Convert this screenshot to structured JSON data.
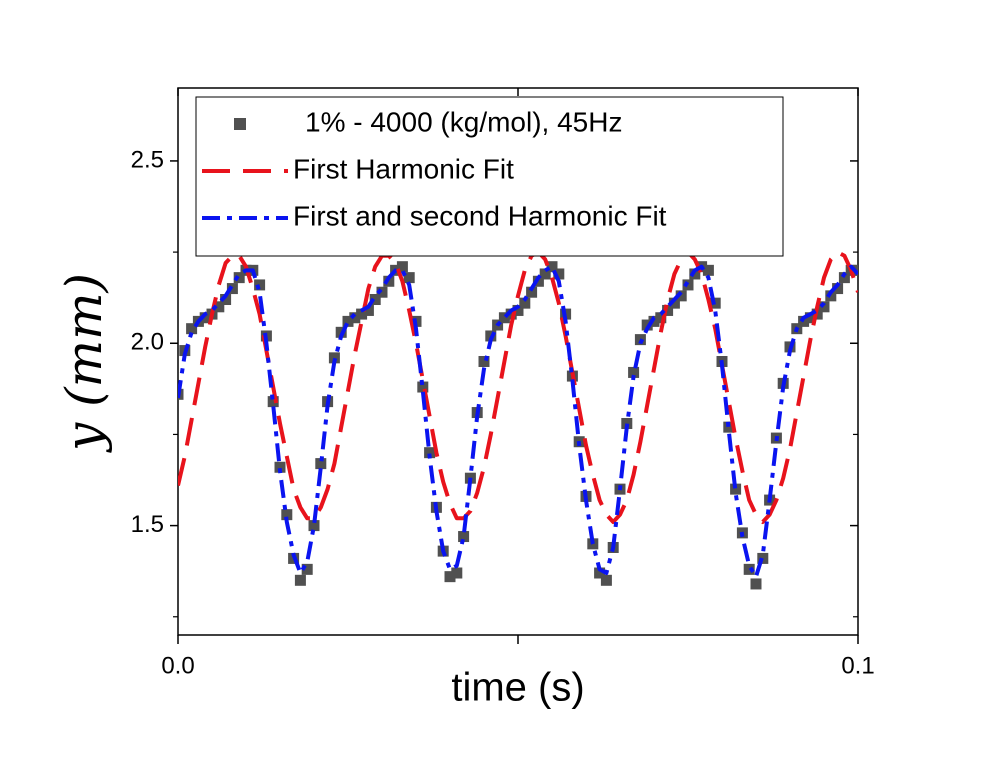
{
  "chart_data": {
    "type": "line",
    "x_label": "time (s)",
    "y_label": "y (mm)",
    "xlim": [
      0,
      0.1
    ],
    "ylim": [
      1.2,
      2.7
    ],
    "xticks": [
      {
        "value": 0,
        "label": "0.0"
      },
      {
        "value": 0.05,
        "label": null
      },
      {
        "value": 0.1,
        "label": "0.1"
      }
    ],
    "yticks": [
      1.5,
      {
        "value": 2,
        "label": "2.0"
      },
      2.5
    ],
    "yminorticks": [
      1.25,
      1.75,
      2.25
    ],
    "grid": false,
    "legend": "upper left",
    "x": [
      0,
      0.001,
      0.002,
      0.003,
      0.004,
      0.005,
      0.006,
      0.007,
      0.008,
      0.009,
      0.01,
      0.011,
      0.012,
      0.013,
      0.014,
      0.015,
      0.016,
      0.017,
      0.018,
      0.019,
      0.02,
      0.021,
      0.022,
      0.023,
      0.024,
      0.025,
      0.026,
      0.027,
      0.028,
      0.029,
      0.03,
      0.031,
      0.032,
      0.033,
      0.034,
      0.035,
      0.036,
      0.037,
      0.038,
      0.039,
      0.04,
      0.041,
      0.042,
      0.043,
      0.044,
      0.045,
      0.046,
      0.047,
      0.048,
      0.049,
      0.05,
      0.051,
      0.052,
      0.053,
      0.054,
      0.055,
      0.056,
      0.057,
      0.058,
      0.059,
      0.06,
      0.061,
      0.062,
      0.063,
      0.064,
      0.065,
      0.066,
      0.067,
      0.068,
      0.069,
      0.07,
      0.071,
      0.072,
      0.073,
      0.074,
      0.075,
      0.076,
      0.077,
      0.078,
      0.079,
      0.08,
      0.081,
      0.082,
      0.083,
      0.084,
      0.085,
      0.086,
      0.087,
      0.088,
      0.089,
      0.09,
      0.091,
      0.092,
      0.093,
      0.094,
      0.095,
      0.096,
      0.097,
      0.098,
      0.099,
      0.1
    ],
    "series": [
      {
        "name": "1% - 4000 (kg/mol), 45Hz",
        "color": "#505050",
        "style": "markers",
        "values": [
          1.86,
          1.98,
          2.04,
          2.06,
          2.07,
          2.08,
          2.1,
          2.12,
          2.15,
          2.18,
          2.2,
          2.2,
          2.16,
          2.02,
          1.84,
          1.66,
          1.53,
          1.41,
          1.35,
          1.38,
          1.5,
          1.67,
          1.84,
          1.96,
          2.03,
          2.06,
          2.07,
          2.08,
          2.09,
          2.12,
          2.14,
          2.17,
          2.2,
          2.21,
          2.18,
          2.06,
          1.88,
          1.7,
          1.55,
          1.43,
          1.36,
          1.37,
          1.47,
          1.63,
          1.81,
          1.95,
          2.02,
          2.05,
          2.07,
          2.08,
          2.09,
          2.11,
          2.14,
          2.17,
          2.19,
          2.21,
          2.19,
          2.08,
          1.91,
          1.73,
          1.58,
          1.45,
          1.37,
          1.35,
          1.44,
          1.6,
          1.78,
          1.92,
          2.01,
          2.05,
          2.06,
          2.07,
          2.09,
          2.11,
          2.13,
          2.16,
          2.19,
          2.21,
          2.2,
          2.11,
          1.95,
          1.77,
          1.6,
          1.48,
          1.38,
          1.34,
          1.41,
          1.57,
          1.74,
          1.89,
          1.99,
          2.04,
          2.06,
          2.07,
          2.08,
          2.1,
          2.13,
          2.15,
          2.18,
          2.2,
          2.2
        ]
      },
      {
        "name": "First Harmonic Fit",
        "color": "#e8131c",
        "style": "dashed",
        "values": [
          1.61,
          1.69,
          1.79,
          1.89,
          1.99,
          2.08,
          2.16,
          2.22,
          2.24,
          2.24,
          2.21,
          2.15,
          2.08,
          1.98,
          1.88,
          1.78,
          1.69,
          1.6,
          1.55,
          1.52,
          1.52,
          1.55,
          1.6,
          1.67,
          1.77,
          1.87,
          1.97,
          2.06,
          2.15,
          2.21,
          2.24,
          2.24,
          2.22,
          2.17,
          2.09,
          2.0,
          1.9,
          1.8,
          1.7,
          1.62,
          1.56,
          1.52,
          1.52,
          1.54,
          1.59,
          1.66,
          1.75,
          1.85,
          1.95,
          2.05,
          2.13,
          2.2,
          2.24,
          2.25,
          2.23,
          2.18,
          2.11,
          2.02,
          1.92,
          1.82,
          1.72,
          1.64,
          1.57,
          1.53,
          1.51,
          1.53,
          1.57,
          1.64,
          1.73,
          1.83,
          1.93,
          2.03,
          2.12,
          2.19,
          2.23,
          2.25,
          2.23,
          2.19,
          2.12,
          2.04,
          1.94,
          1.84,
          1.74,
          1.65,
          1.57,
          1.53,
          1.51,
          1.53,
          1.57,
          1.63,
          1.71,
          1.81,
          1.91,
          2.01,
          2.1,
          2.18,
          2.23,
          2.25,
          2.24,
          2.2,
          2.14
        ]
      },
      {
        "name": "First and second Harmonic Fit",
        "color": "#0a14f0",
        "style": "dashdot",
        "values": [
          1.85,
          1.97,
          2.03,
          2.06,
          2.08,
          2.09,
          2.11,
          2.13,
          2.16,
          2.19,
          2.2,
          2.2,
          2.14,
          2.0,
          1.83,
          1.65,
          1.51,
          1.42,
          1.37,
          1.4,
          1.5,
          1.66,
          1.83,
          1.95,
          2.02,
          2.06,
          2.08,
          2.09,
          2.1,
          2.13,
          2.15,
          2.18,
          2.2,
          2.2,
          2.16,
          2.04,
          1.87,
          1.69,
          1.54,
          1.43,
          1.38,
          1.39,
          1.47,
          1.63,
          1.8,
          1.93,
          2.01,
          2.05,
          2.07,
          2.09,
          2.1,
          2.12,
          2.15,
          2.18,
          2.2,
          2.21,
          2.17,
          2.06,
          1.9,
          1.72,
          1.57,
          1.45,
          1.38,
          1.37,
          1.44,
          1.6,
          1.77,
          1.91,
          2.0,
          2.04,
          2.07,
          2.08,
          2.1,
          2.12,
          2.14,
          2.17,
          2.2,
          2.21,
          2.18,
          2.09,
          1.94,
          1.76,
          1.59,
          1.47,
          1.39,
          1.36,
          1.42,
          1.57,
          1.73,
          1.88,
          1.98,
          2.04,
          2.07,
          2.08,
          2.09,
          2.11,
          2.14,
          2.16,
          2.19,
          2.21,
          2.19
        ]
      }
    ]
  }
}
